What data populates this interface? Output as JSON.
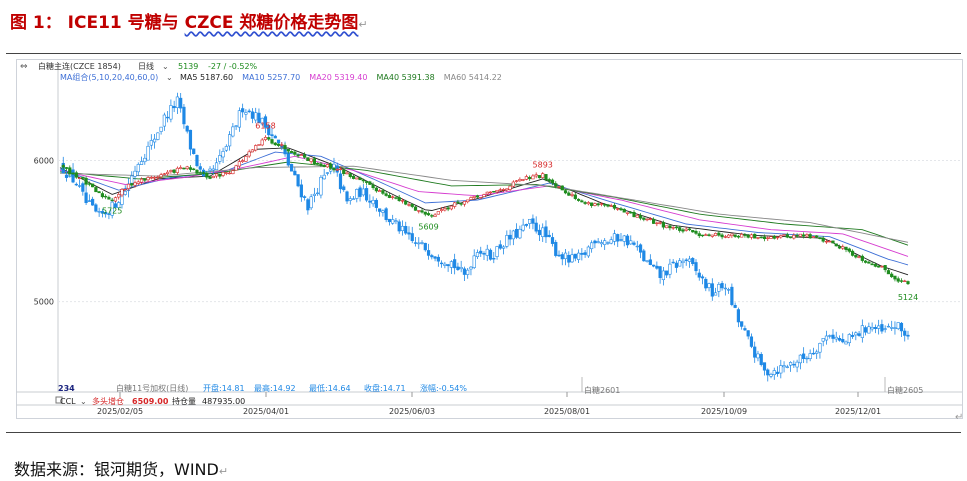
{
  "figure": {
    "title_prefix": "图 1：",
    "title_main": "ICE11 号糖与 ",
    "title_czce": "CZCE 郑糖价格走势图",
    "return_mark": "↵"
  },
  "source": {
    "text": "数据来源：银河期货，WIND"
  },
  "chart_data": {
    "type": "candlestick",
    "header": {
      "instrument": "白糖主连(CZCE 1854)",
      "period": "日线",
      "last": "5139",
      "change": "-27 / -0.52%",
      "ma_group": "MA组合(5,10,20,40,60,0)",
      "ma_labels": [
        {
          "label": "MA5 5187.60",
          "color": "#222222"
        },
        {
          "label": "MA10 5257.70",
          "color": "#3d6fd6"
        },
        {
          "label": "MA20 5319.40",
          "color": "#d63dd0"
        },
        {
          "label": "MA40 5391.38",
          "color": "#1f7a1f"
        },
        {
          "label": "MA60 5414.22",
          "color": "#888888"
        }
      ]
    },
    "y_ticks": [
      6000,
      5000
    ],
    "ylim": [
      4380,
      6550
    ],
    "x_labels": [
      "2025/02/05",
      "2025/04/01",
      "2025/06/03",
      "2025/08/01",
      "2025/10/09",
      "2025/12/01"
    ],
    "contract_labels": [
      "白糖2601",
      "白糖2605"
    ],
    "annotations_czce": [
      {
        "label": "5725"
      },
      {
        "label": "6158"
      },
      {
        "label": "5609"
      },
      {
        "label": "5893"
      },
      {
        "label": "5124"
      }
    ],
    "ice_info": {
      "code": "234",
      "text": "白糖11号加权(日线)",
      "open": "开盘:14.81",
      "high": "最高:14.92",
      "low": "最低:14.64",
      "close": "收盘:14.71",
      "change": "涨幅:-0.54%"
    },
    "bottom_bar": {
      "indicator": "CCL",
      "label": "多头增仓",
      "value": "6509.00",
      "oi_label": "持仓量",
      "oi_value": "487935.00"
    },
    "series": [
      {
        "name": "白糖主连(CZCE 1854)",
        "color_up": "#d62728",
        "color_down": "#1e8c1e",
        "keypoints": [
          [
            0,
            5960
          ],
          [
            6,
            5880
          ],
          [
            12,
            5760
          ],
          [
            16,
            5725
          ],
          [
            22,
            5840
          ],
          [
            30,
            5890
          ],
          [
            38,
            5950
          ],
          [
            46,
            5880
          ],
          [
            52,
            5920
          ],
          [
            58,
            6050
          ],
          [
            63,
            6158
          ],
          [
            70,
            6080
          ],
          [
            78,
            5990
          ],
          [
            86,
            5930
          ],
          [
            94,
            5830
          ],
          [
            102,
            5740
          ],
          [
            108,
            5670
          ],
          [
            113,
            5609
          ],
          [
            120,
            5680
          ],
          [
            128,
            5740
          ],
          [
            136,
            5800
          ],
          [
            142,
            5870
          ],
          [
            148,
            5893
          ],
          [
            154,
            5800
          ],
          [
            160,
            5700
          ],
          [
            166,
            5690
          ],
          [
            172,
            5640
          ],
          [
            180,
            5580
          ],
          [
            188,
            5520
          ],
          [
            196,
            5480
          ],
          [
            204,
            5470
          ],
          [
            212,
            5460
          ],
          [
            220,
            5460
          ],
          [
            228,
            5470
          ],
          [
            234,
            5440
          ],
          [
            240,
            5380
          ],
          [
            246,
            5300
          ],
          [
            252,
            5240
          ],
          [
            256,
            5170
          ],
          [
            260,
            5124
          ]
        ]
      },
      {
        "name": "白糖11号加权",
        "color": "#1e88e5",
        "keypoints": [
          [
            0,
            5970
          ],
          [
            5,
            5840
          ],
          [
            8,
            5700
          ],
          [
            12,
            5600
          ],
          [
            16,
            5670
          ],
          [
            20,
            5790
          ],
          [
            24,
            5990
          ],
          [
            28,
            6120
          ],
          [
            32,
            6300
          ],
          [
            36,
            6420
          ],
          [
            40,
            6100
          ],
          [
            44,
            5860
          ],
          [
            48,
            5960
          ],
          [
            52,
            6150
          ],
          [
            56,
            6380
          ],
          [
            60,
            6320
          ],
          [
            64,
            6220
          ],
          [
            68,
            6080
          ],
          [
            72,
            5870
          ],
          [
            76,
            5680
          ],
          [
            80,
            5850
          ],
          [
            84,
            5950
          ],
          [
            88,
            5700
          ],
          [
            92,
            5780
          ],
          [
            96,
            5720
          ],
          [
            100,
            5600
          ],
          [
            104,
            5520
          ],
          [
            108,
            5420
          ],
          [
            112,
            5380
          ],
          [
            116,
            5320
          ],
          [
            120,
            5280
          ],
          [
            124,
            5180
          ],
          [
            128,
            5380
          ],
          [
            132,
            5320
          ],
          [
            136,
            5420
          ],
          [
            140,
            5480
          ],
          [
            144,
            5550
          ],
          [
            148,
            5490
          ],
          [
            152,
            5360
          ],
          [
            156,
            5290
          ],
          [
            160,
            5310
          ],
          [
            164,
            5450
          ],
          [
            168,
            5430
          ],
          [
            172,
            5460
          ],
          [
            176,
            5400
          ],
          [
            180,
            5270
          ],
          [
            184,
            5180
          ],
          [
            188,
            5250
          ],
          [
            192,
            5300
          ],
          [
            196,
            5180
          ],
          [
            200,
            5060
          ],
          [
            204,
            5120
          ],
          [
            208,
            4860
          ],
          [
            212,
            4680
          ],
          [
            216,
            4500
          ],
          [
            220,
            4520
          ],
          [
            224,
            4560
          ],
          [
            228,
            4600
          ],
          [
            232,
            4680
          ],
          [
            236,
            4780
          ],
          [
            240,
            4700
          ],
          [
            244,
            4760
          ],
          [
            248,
            4830
          ],
          [
            252,
            4780
          ],
          [
            256,
            4830
          ],
          [
            260,
            4760
          ]
        ]
      }
    ],
    "moving_averages": [
      {
        "name": "MA5",
        "color": "#222222",
        "keypoints": [
          [
            0,
            5950
          ],
          [
            16,
            5760
          ],
          [
            30,
            5870
          ],
          [
            46,
            5890
          ],
          [
            60,
            6080
          ],
          [
            70,
            6090
          ],
          [
            86,
            5950
          ],
          [
            102,
            5760
          ],
          [
            113,
            5640
          ],
          [
            128,
            5730
          ],
          [
            148,
            5870
          ],
          [
            166,
            5700
          ],
          [
            188,
            5540
          ],
          [
            212,
            5470
          ],
          [
            234,
            5450
          ],
          [
            252,
            5250
          ],
          [
            260,
            5190
          ]
        ]
      },
      {
        "name": "MA10",
        "color": "#3d6fd6",
        "keypoints": [
          [
            0,
            5940
          ],
          [
            18,
            5790
          ],
          [
            34,
            5880
          ],
          [
            50,
            5920
          ],
          [
            66,
            6060
          ],
          [
            80,
            6030
          ],
          [
            96,
            5870
          ],
          [
            112,
            5700
          ],
          [
            128,
            5720
          ],
          [
            150,
            5840
          ],
          [
            170,
            5700
          ],
          [
            192,
            5550
          ],
          [
            214,
            5490
          ],
          [
            236,
            5460
          ],
          [
            254,
            5300
          ],
          [
            260,
            5260
          ]
        ]
      },
      {
        "name": "MA20",
        "color": "#d63dd0",
        "keypoints": [
          [
            0,
            5930
          ],
          [
            20,
            5830
          ],
          [
            38,
            5880
          ],
          [
            56,
            5950
          ],
          [
            72,
            6030
          ],
          [
            90,
            5930
          ],
          [
            110,
            5780
          ],
          [
            128,
            5750
          ],
          [
            150,
            5820
          ],
          [
            172,
            5720
          ],
          [
            196,
            5580
          ],
          [
            218,
            5510
          ],
          [
            240,
            5480
          ],
          [
            260,
            5320
          ]
        ]
      },
      {
        "name": "MA40",
        "color": "#1f7a1f",
        "keypoints": [
          [
            0,
            5920
          ],
          [
            24,
            5870
          ],
          [
            48,
            5910
          ],
          [
            70,
            5990
          ],
          [
            94,
            5930
          ],
          [
            120,
            5820
          ],
          [
            146,
            5830
          ],
          [
            170,
            5740
          ],
          [
            196,
            5620
          ],
          [
            222,
            5550
          ],
          [
            246,
            5510
          ],
          [
            260,
            5400
          ]
        ]
      },
      {
        "name": "MA60",
        "color": "#888888",
        "keypoints": [
          [
            0,
            5910
          ],
          [
            30,
            5890
          ],
          [
            60,
            5950
          ],
          [
            90,
            5960
          ],
          [
            120,
            5860
          ],
          [
            150,
            5820
          ],
          [
            176,
            5720
          ],
          [
            202,
            5620
          ],
          [
            230,
            5560
          ],
          [
            260,
            5420
          ]
        ]
      }
    ]
  }
}
